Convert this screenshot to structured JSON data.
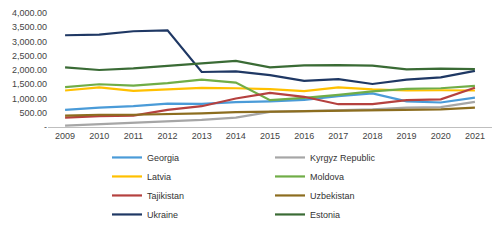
{
  "chart_data": {
    "type": "line",
    "categories": [
      "2009",
      "2010",
      "2011",
      "2012",
      "2013",
      "2014",
      "2015",
      "2016",
      "2017",
      "2018",
      "2019",
      "2020",
      "2021"
    ],
    "series": [
      {
        "name": "Georgia",
        "color": "#4a9bd8",
        "values": [
          600,
          680,
          730,
          820,
          810,
          870,
          900,
          950,
          1080,
          1180,
          900,
          860,
          1030
        ]
      },
      {
        "name": "Kyrgyz Republic",
        "color": "#a6a6a6",
        "values": [
          50,
          100,
          150,
          200,
          250,
          330,
          530,
          560,
          580,
          620,
          680,
          700,
          880
        ]
      },
      {
        "name": "Latvia",
        "color": "#ffc000",
        "values": [
          1280,
          1390,
          1270,
          1320,
          1370,
          1360,
          1330,
          1260,
          1390,
          1320,
          1280,
          1290,
          1280
        ]
      },
      {
        "name": "Moldova",
        "color": "#70ad47",
        "values": [
          1400,
          1500,
          1450,
          1540,
          1660,
          1560,
          940,
          1020,
          1130,
          1250,
          1340,
          1360,
          1440
        ]
      },
      {
        "name": "Tajikistan",
        "color": "#b5413f",
        "values": [
          330,
          380,
          400,
          600,
          730,
          1000,
          1200,
          1060,
          800,
          800,
          940,
          970,
          1380
        ]
      },
      {
        "name": "Uzbekistan",
        "color": "#8c6d1f",
        "values": [
          400,
          430,
          430,
          450,
          480,
          520,
          540,
          560,
          580,
          600,
          600,
          620,
          680
        ]
      },
      {
        "name": "Ukraine",
        "color": "#1f3864",
        "values": [
          3220,
          3240,
          3360,
          3390,
          1930,
          1950,
          1820,
          1620,
          1680,
          1510,
          1660,
          1740,
          1970
        ]
      },
      {
        "name": "Estonia",
        "color": "#3a6b35",
        "values": [
          2090,
          2000,
          2060,
          2150,
          2230,
          2320,
          2090,
          2160,
          2170,
          2150,
          2020,
          2050,
          2030
        ]
      }
    ],
    "ylim": [
      0,
      4000
    ],
    "yticks": [
      {
        "value": 0,
        "label": "-"
      },
      {
        "value": 500,
        "label": "500.00"
      },
      {
        "value": 1000,
        "label": "1,000.00"
      },
      {
        "value": 1500,
        "label": "1,500.00"
      },
      {
        "value": 2000,
        "label": "2,000.00"
      },
      {
        "value": 2500,
        "label": "2,500.00"
      },
      {
        "value": 3000,
        "label": "3,000.00"
      },
      {
        "value": 3500,
        "label": "3,500.00"
      },
      {
        "value": 4000,
        "label": "4,000.00"
      }
    ],
    "grid": false,
    "legend": "bottom"
  }
}
